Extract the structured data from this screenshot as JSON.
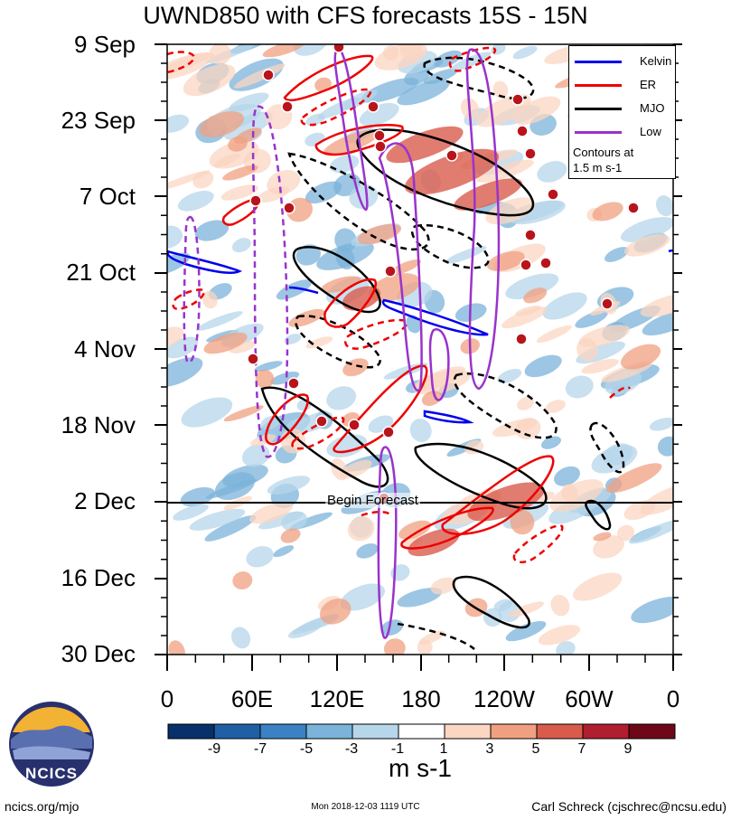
{
  "chart_data": {
    "type": "heatmap",
    "title": "UWND850 with CFS forecasts  15S - 15N",
    "x_tick_labels": [
      "0",
      "60E",
      "120E",
      "180",
      "120W",
      "60W",
      "0"
    ],
    "y_tick_labels": [
      "9 Sep",
      "23 Sep",
      "7 Oct",
      "21 Oct",
      "4 Nov",
      "18 Nov",
      "2 Dec",
      "16 Dec",
      "30 Dec"
    ],
    "colorbar": {
      "tick_labels": [
        "-9",
        "-7",
        "-5",
        "-3",
        "-1",
        "1",
        "3",
        "5",
        "7",
        "9"
      ],
      "colors": [
        "#08306b",
        "#1f5fa6",
        "#3b82c4",
        "#7bb3da",
        "#b6d6ea",
        "#ffffff",
        "#fbd6c2",
        "#f0a081",
        "#d95b4c",
        "#b01f2f",
        "#6e0818"
      ],
      "units": "m s-1"
    },
    "legend": {
      "position": "top-right",
      "entries": [
        {
          "label": "Kelvin",
          "color": "#0000ee"
        },
        {
          "label": "ER",
          "color": "#ee0000"
        },
        {
          "label": "MJO",
          "color": "#000000"
        },
        {
          "label": "Low",
          "color": "#9933cc"
        }
      ],
      "note_line1": "Contours at",
      "note_line2": "1.5 m s-1"
    },
    "annotation": "Begin Forecast",
    "forecast_start": "2 Dec"
  },
  "logo": {
    "text": "NCICS"
  },
  "footer": {
    "left": "ncics.org/mjo",
    "center": "Mon 2018-12-03 1119 UTC",
    "right": "Carl Schreck (cjschrec@ncsu.edu)"
  }
}
